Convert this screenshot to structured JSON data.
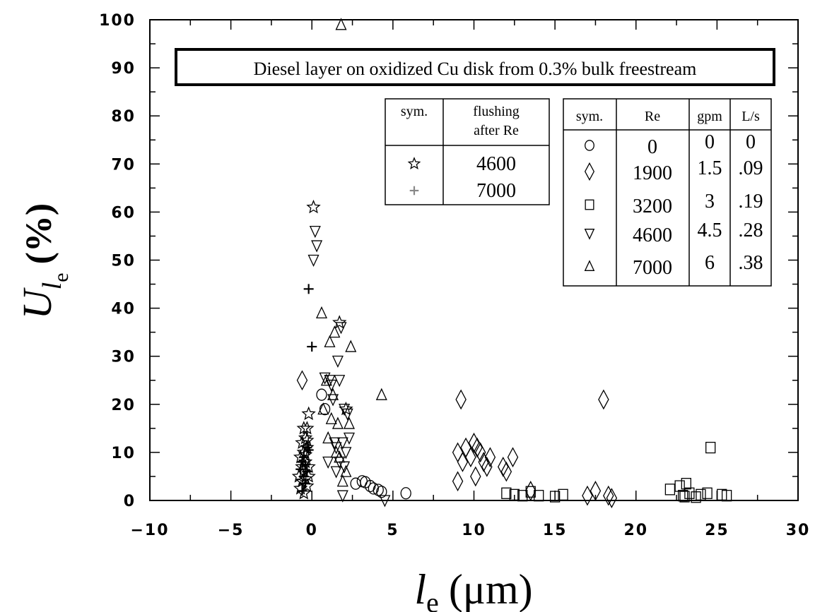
{
  "chart_data": {
    "type": "scatter",
    "title": "Diesel layer on oxidized Cu disk from 0.3% bulk freestream",
    "xlabel": {
      "main": "l",
      "sub": "e",
      "unit": "(μm)"
    },
    "ylabel": {
      "main": "U",
      "sub": "l",
      "subsub": "e",
      "unit": "(%)"
    },
    "xlim": [
      -10,
      30
    ],
    "ylim": [
      0,
      100
    ],
    "xticks": [
      "−10",
      "−5",
      "0",
      "5",
      "10",
      "15",
      "20",
      "25",
      "30"
    ],
    "yticks": [
      "0",
      "10",
      "20",
      "30",
      "40",
      "50",
      "60",
      "70",
      "80",
      "90",
      "100"
    ],
    "grid": false,
    "legend_re": {
      "headers": [
        "sym.",
        "Re",
        "gpm",
        "L/s"
      ],
      "rows": [
        {
          "symbol": "circle",
          "re": "0",
          "gpm": "0",
          "ls": "0"
        },
        {
          "symbol": "diamond",
          "re": "1900",
          "gpm": "1.5",
          "ls": ".09"
        },
        {
          "symbol": "square",
          "re": "3200",
          "gpm": "3",
          "ls": ".19"
        },
        {
          "symbol": "triangle-down",
          "re": "4600",
          "gpm": "4.5",
          "ls": ".28"
        },
        {
          "symbol": "triangle-up",
          "re": "7000",
          "gpm": "6",
          "ls": ".38"
        }
      ]
    },
    "legend_flush": {
      "headers": [
        "sym.",
        "flushing",
        "after Re"
      ],
      "rows": [
        {
          "symbol": "star",
          "re": "4600"
        },
        {
          "symbol": "plus",
          "re": "7000"
        }
      ]
    },
    "series": [
      {
        "symbol": "circle",
        "points": [
          [
            0.6,
            22
          ],
          [
            0.8,
            19
          ],
          [
            2.7,
            3.5
          ],
          [
            3.1,
            4
          ],
          [
            3.3,
            3.8
          ],
          [
            3.6,
            3
          ],
          [
            3.8,
            2.5
          ],
          [
            4.1,
            2.2
          ],
          [
            4.3,
            1.8
          ],
          [
            5.8,
            1.5
          ]
        ]
      },
      {
        "symbol": "diamond",
        "points": [
          [
            -0.6,
            25
          ],
          [
            9,
            4
          ],
          [
            9,
            10
          ],
          [
            9.2,
            21
          ],
          [
            9.3,
            8
          ],
          [
            9.5,
            11
          ],
          [
            9.8,
            9
          ],
          [
            10,
            12
          ],
          [
            10.1,
            5
          ],
          [
            10.2,
            11
          ],
          [
            10.4,
            10
          ],
          [
            10.6,
            8
          ],
          [
            10.8,
            7
          ],
          [
            11,
            9
          ],
          [
            11.8,
            7
          ],
          [
            12,
            6
          ],
          [
            12.4,
            9
          ],
          [
            13.5,
            2
          ],
          [
            17,
            1
          ],
          [
            17.5,
            2
          ],
          [
            18,
            21
          ],
          [
            18.3,
            1
          ],
          [
            18.5,
            0.5
          ]
        ]
      },
      {
        "symbol": "square",
        "points": [
          [
            12,
            1.5
          ],
          [
            12.5,
            1.2
          ],
          [
            13,
            1
          ],
          [
            13.5,
            1.8
          ],
          [
            14,
            1
          ],
          [
            15,
            0.8
          ],
          [
            15.5,
            1.2
          ],
          [
            22.1,
            2.3
          ],
          [
            22.7,
            3
          ],
          [
            22.9,
            1
          ],
          [
            23,
            0.8
          ],
          [
            23.1,
            3.5
          ],
          [
            23.3,
            1.5
          ],
          [
            23.7,
            0.7
          ],
          [
            24,
            1.2
          ],
          [
            24.4,
            1.5
          ],
          [
            24.6,
            11
          ],
          [
            25.3,
            1.2
          ],
          [
            25.6,
            1
          ]
        ]
      },
      {
        "symbol": "triangle-down",
        "points": [
          [
            0.2,
            56
          ],
          [
            0.3,
            53
          ],
          [
            0.1,
            50
          ],
          [
            0.8,
            25.5
          ],
          [
            1.1,
            25
          ],
          [
            1.2,
            24
          ],
          [
            1.3,
            21
          ],
          [
            1.4,
            12
          ],
          [
            1.5,
            11
          ],
          [
            1.6,
            29
          ],
          [
            1.7,
            25
          ],
          [
            1.8,
            36
          ],
          [
            1.9,
            12
          ],
          [
            2,
            7
          ],
          [
            2,
            19
          ],
          [
            2.1,
            10
          ],
          [
            2.2,
            18
          ],
          [
            2.3,
            13
          ],
          [
            1.9,
            1
          ],
          [
            4.5,
            0
          ],
          [
            1,
            8
          ],
          [
            1.5,
            6
          ],
          [
            1.7,
            8
          ]
        ]
      },
      {
        "symbol": "triangle-up",
        "points": [
          [
            1.8,
            99
          ],
          [
            0.6,
            39
          ],
          [
            1.4,
            35
          ],
          [
            1.1,
            33
          ],
          [
            0.9,
            25
          ],
          [
            1.3,
            22
          ],
          [
            1.2,
            17
          ],
          [
            0.7,
            19
          ],
          [
            1.6,
            16
          ],
          [
            2.4,
            32
          ],
          [
            2.3,
            16
          ],
          [
            4.3,
            22
          ],
          [
            1.9,
            4
          ],
          [
            2.1,
            6
          ],
          [
            1.7,
            9
          ],
          [
            1.5,
            10
          ],
          [
            1,
            13
          ]
        ]
      },
      {
        "symbol": "star",
        "points": [
          [
            0.1,
            61
          ],
          [
            1.7,
            37
          ],
          [
            2.1,
            19
          ],
          [
            -0.2,
            18
          ],
          [
            -0.3,
            15
          ],
          [
            -0.5,
            15
          ],
          [
            -0.4,
            13
          ],
          [
            -0.6,
            12
          ],
          [
            -0.3,
            11
          ],
          [
            -0.5,
            10
          ],
          [
            -0.7,
            9
          ],
          [
            -0.4,
            8
          ],
          [
            -0.6,
            7
          ],
          [
            -0.2,
            7
          ],
          [
            -0.5,
            6
          ],
          [
            -0.8,
            5
          ],
          [
            -0.4,
            4.5
          ],
          [
            -0.6,
            4
          ],
          [
            -0.3,
            3
          ],
          [
            -0.7,
            2.5
          ],
          [
            -0.5,
            1.5
          ],
          [
            -0.2,
            5
          ],
          [
            -0.4,
            9.5
          ],
          [
            -0.3,
            12.5
          ]
        ]
      },
      {
        "symbol": "plus",
        "points": [
          [
            -0.2,
            44
          ],
          [
            0,
            32
          ],
          [
            -0.3,
            11
          ],
          [
            -0.5,
            9
          ],
          [
            -0.6,
            8
          ],
          [
            -0.4,
            7.5
          ],
          [
            -0.7,
            6.5
          ],
          [
            -0.3,
            6
          ],
          [
            -0.5,
            5
          ],
          [
            -0.4,
            3.5
          ],
          [
            -0.6,
            2
          ],
          [
            -0.2,
            10.5
          ]
        ]
      }
    ]
  }
}
